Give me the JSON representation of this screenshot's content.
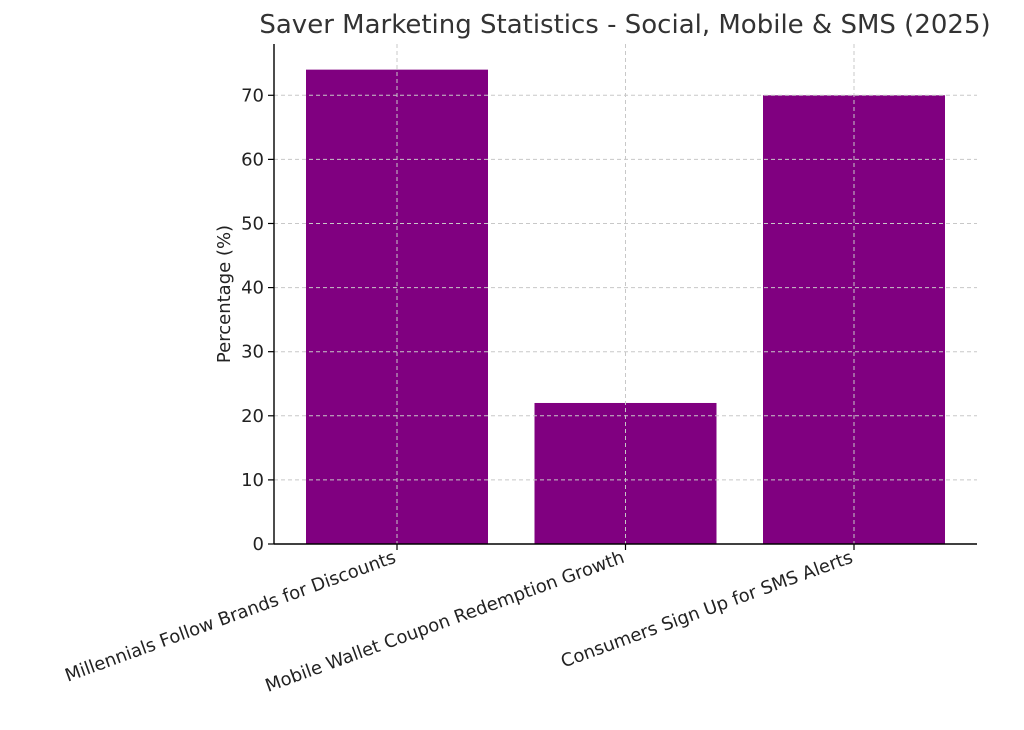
{
  "chart_data": {
    "type": "bar",
    "title": "Saver Marketing Statistics - Social, Mobile & SMS (2025)",
    "xlabel": "",
    "ylabel": "Percentage (%)",
    "categories": [
      "Millennials Follow Brands for Discounts",
      "Mobile Wallet Coupon Redemption Growth",
      "Consumers Sign Up for SMS Alerts"
    ],
    "values": [
      74,
      22,
      70
    ],
    "ylim": [
      0,
      78
    ],
    "yticks": [
      0,
      10,
      20,
      30,
      40,
      50,
      60,
      70
    ],
    "bar_color": "#800080",
    "grid": true
  }
}
